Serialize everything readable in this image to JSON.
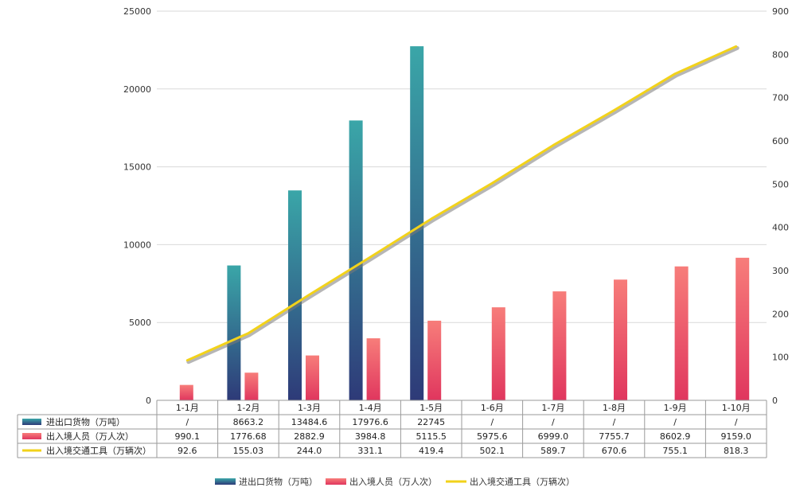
{
  "chart_data": {
    "type": "bar",
    "categories": [
      "1-1月",
      "1-2月",
      "1-3月",
      "1-4月",
      "1-5月",
      "1-6月",
      "1-7月",
      "1-8月",
      "1-9月",
      "1-10月"
    ],
    "ylim_left": [
      0,
      25000
    ],
    "yticks_left": [
      0,
      5000,
      10000,
      15000,
      20000,
      25000
    ],
    "ylim_right": [
      0,
      900
    ],
    "yticks_right": [
      0,
      100,
      200,
      300,
      400,
      500,
      600,
      700,
      800,
      900
    ],
    "grid": true,
    "legend_position": "bottom",
    "series": [
      {
        "name": "进出口货物（万吨）",
        "type": "bar",
        "axis": "left",
        "color_top": "#3aa6a8",
        "color_bottom": "#2e3a78",
        "values": [
          null,
          8663.2,
          13484.6,
          17976.6,
          22745,
          null,
          null,
          null,
          null,
          null
        ],
        "labels": [
          "/",
          "8663.2",
          "13484.6",
          "17976.6",
          "22745",
          "/",
          "/",
          "/",
          "/",
          "/"
        ]
      },
      {
        "name": "出入境人员（万人次）",
        "type": "bar",
        "axis": "left",
        "color_top": "#f77d7a",
        "color_bottom": "#e0365e",
        "values": [
          990.1,
          1776.68,
          2882.9,
          3984.8,
          5115.5,
          5975.6,
          6999.0,
          7755.7,
          8602.9,
          9159.0
        ],
        "labels": [
          "990.1",
          "1776.68",
          "2882.9",
          "3984.8",
          "5115.5",
          "5975.6",
          "6999.0",
          "7755.7",
          "8602.9",
          "9159.0"
        ]
      },
      {
        "name": "出入境交通工具（万辆次）",
        "type": "line",
        "axis": "right",
        "color": "#f2d21a",
        "values": [
          92.6,
          155.03,
          244.0,
          331.1,
          419.4,
          502.1,
          589.7,
          670.6,
          755.1,
          818.3
        ],
        "labels": [
          "92.6",
          "155.03",
          "244.0",
          "331.1",
          "419.4",
          "502.1",
          "589.7",
          "670.6",
          "755.1",
          "818.3"
        ]
      }
    ]
  }
}
